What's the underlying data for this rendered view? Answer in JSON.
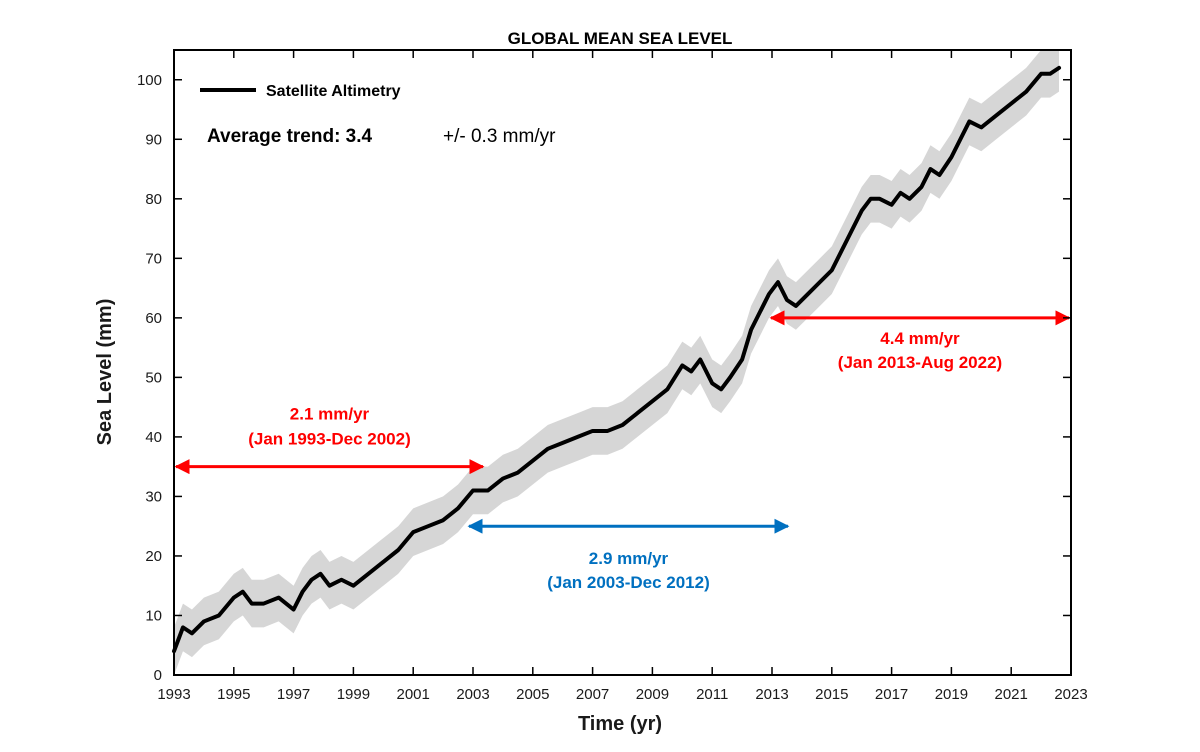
{
  "chart_data": {
    "type": "line",
    "title": "GLOBAL MEAN SEA LEVEL",
    "xlabel": "Time (yr)",
    "ylabel": "Sea Level (mm)",
    "xlim": [
      1993,
      2023
    ],
    "ylim": [
      0,
      105
    ],
    "xticks": [
      1993,
      1995,
      1997,
      1999,
      2001,
      2003,
      2005,
      2007,
      2009,
      2011,
      2013,
      2015,
      2017,
      2019,
      2021,
      2023
    ],
    "yticks": [
      0,
      10,
      20,
      30,
      40,
      50,
      60,
      70,
      80,
      90,
      100
    ],
    "grid": false,
    "series": [
      {
        "name": "Satellite Altimetry",
        "color": "#000000",
        "x": [
          1993.0,
          1993.3,
          1993.6,
          1994.0,
          1994.5,
          1995.0,
          1995.3,
          1995.6,
          1996.0,
          1996.5,
          1997.0,
          1997.3,
          1997.6,
          1997.9,
          1998.2,
          1998.6,
          1999.0,
          1999.5,
          2000.0,
          2000.5,
          2001.0,
          2001.5,
          2002.0,
          2002.5,
          2003.0,
          2003.5,
          2004.0,
          2004.5,
          2005.0,
          2005.5,
          2006.0,
          2006.5,
          2007.0,
          2007.5,
          2008.0,
          2008.5,
          2009.0,
          2009.5,
          2010.0,
          2010.3,
          2010.6,
          2011.0,
          2011.3,
          2011.6,
          2012.0,
          2012.3,
          2012.6,
          2012.9,
          2013.2,
          2013.5,
          2013.8,
          2014.2,
          2014.6,
          2015.0,
          2015.5,
          2016.0,
          2016.3,
          2016.6,
          2017.0,
          2017.3,
          2017.6,
          2018.0,
          2018.3,
          2018.6,
          2019.0,
          2019.3,
          2019.6,
          2020.0,
          2020.5,
          2021.0,
          2021.5,
          2022.0,
          2022.3,
          2022.6
        ],
        "y": [
          4,
          8,
          7,
          9,
          10,
          13,
          14,
          12,
          12,
          13,
          11,
          14,
          16,
          17,
          15,
          16,
          15,
          17,
          19,
          21,
          24,
          25,
          26,
          28,
          31,
          31,
          33,
          34,
          36,
          38,
          39,
          40,
          41,
          41,
          42,
          44,
          46,
          48,
          52,
          51,
          53,
          49,
          48,
          50,
          53,
          58,
          61,
          64,
          66,
          63,
          62,
          64,
          66,
          68,
          73,
          78,
          80,
          80,
          79,
          81,
          80,
          82,
          85,
          84,
          87,
          90,
          93,
          92,
          94,
          96,
          98,
          101,
          101,
          102
        ]
      }
    ],
    "uncertainty_band": {
      "halfwidth": 4,
      "color": "#d6d6d6"
    },
    "legend": {
      "position": "top-left",
      "label": "Satellite Altimetry"
    },
    "trend_annotation": {
      "label": "Average trend: 3.4",
      "uncertainty": "+/- 0.3 mm/yr"
    },
    "rate_annotations": [
      {
        "rate": "2.1 mm/yr",
        "period": "(Jan 1993-Dec 2002)",
        "color": "#ff0000",
        "from": 1993.0,
        "to": 2003.4,
        "level": 35
      },
      {
        "rate": "2.9 mm/yr",
        "period": "(Jan 2003-Dec 2012)",
        "color": "#0070c0",
        "from": 2002.8,
        "to": 2013.6,
        "level": 25
      },
      {
        "rate": "4.4 mm/yr",
        "period": "(Jan 2013-Aug 2022)",
        "color": "#ff0000",
        "from": 2012.9,
        "to": 2023.0,
        "level": 60
      }
    ]
  }
}
